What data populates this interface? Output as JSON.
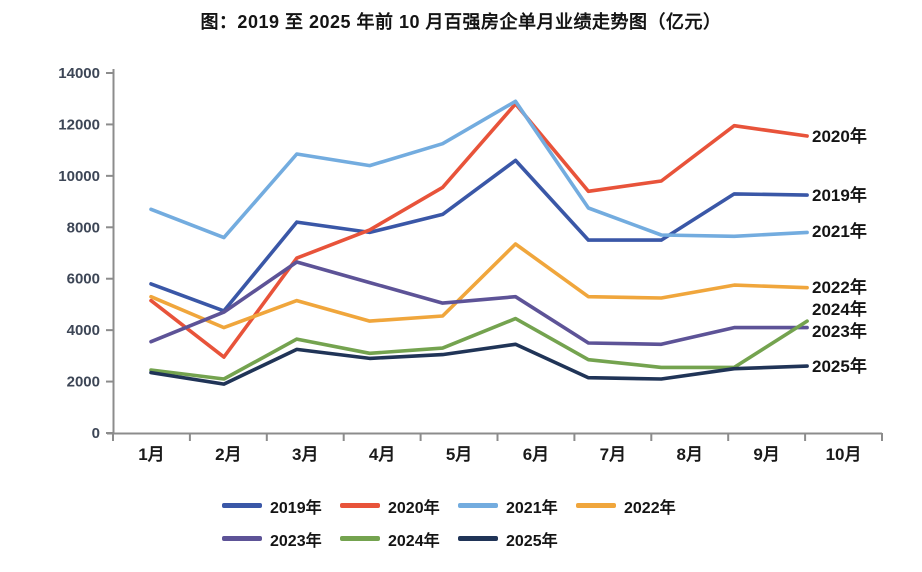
{
  "title": "图：2019 至 2025 年前 10 月百强房企单月业绩走势图（亿元）",
  "colors": {
    "background": "#FFFFFF",
    "axis": "#8C8C8C",
    "y_tick_text": "#3D4656",
    "x_tick_text": "#1A1A1A",
    "title_text": "#141414",
    "end_label_text": "#141414"
  },
  "chart_data": {
    "type": "line",
    "title": "图：2019 至 2025 年前 10 月百强房企单月业绩走势图（亿元）",
    "unit": "亿元",
    "x_categories": [
      "1月",
      "2月",
      "3月",
      "4月",
      "5月",
      "6月",
      "7月",
      "8月",
      "9月",
      "10月"
    ],
    "y_axis": {
      "min": 0,
      "max": 14000,
      "step": 2000,
      "tick_labels": [
        "0",
        "2000",
        "4000",
        "6000",
        "8000",
        "10000",
        "12000",
        "14000"
      ]
    },
    "grid": false,
    "legend_position": "bottom",
    "series": [
      {
        "name": "2019年",
        "color": "#3A57A7",
        "end_label_y": 195,
        "values": [
          5800,
          4750,
          8200,
          7800,
          8500,
          10600,
          7500,
          7500,
          9300,
          9250
        ]
      },
      {
        "name": "2020年",
        "color": "#E8533A",
        "end_label_y": 136,
        "values": [
          5150,
          2950,
          6800,
          7900,
          9550,
          12800,
          9400,
          9800,
          11950,
          11550
        ]
      },
      {
        "name": "2021年",
        "color": "#73ACDF",
        "end_label_y": 231,
        "values": [
          8700,
          7600,
          10850,
          10400,
          11250,
          12900,
          8750,
          7700,
          7650,
          7800
        ]
      },
      {
        "name": "2022年",
        "color": "#F0A63C",
        "end_label_y": 287,
        "values": [
          5300,
          4100,
          5150,
          4350,
          4550,
          7350,
          5300,
          5250,
          5750,
          5650
        ]
      },
      {
        "name": "2023年",
        "color": "#5D5397",
        "end_label_y": 331,
        "values": [
          3550,
          4700,
          6650,
          5850,
          5050,
          5300,
          3500,
          3450,
          4100,
          4100
        ]
      },
      {
        "name": "2024年",
        "color": "#74A34F",
        "end_label_y": 309,
        "values": [
          2450,
          2100,
          3650,
          3100,
          3300,
          4450,
          2850,
          2550,
          2550,
          4350
        ]
      },
      {
        "name": "2025年",
        "color": "#203457",
        "end_label_y": 366,
        "values": [
          2350,
          1900,
          3250,
          2900,
          3050,
          3450,
          2150,
          2100,
          2500,
          2600
        ]
      }
    ]
  }
}
